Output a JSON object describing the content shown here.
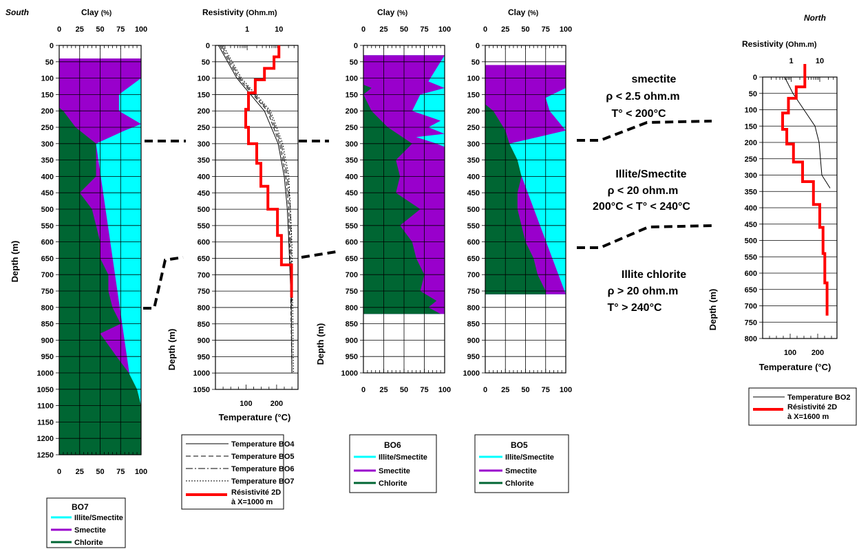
{
  "colors": {
    "illite_smectite": "#00FFFF",
    "smectite": "#9900CC",
    "chlorite": "#006633",
    "resistivity": "#FF0000"
  },
  "labels": {
    "south": "South",
    "north": "North",
    "clay_title": "Clay",
    "clay_unit": "(%)",
    "res_title": "Resistivity",
    "res_unit": "(Ohm.m)",
    "depth_label": "Depth (m)",
    "temp_label": "Temperature (°C)"
  },
  "zones": [
    {
      "lines": [
        "smectite",
        "ρ  < 2.5 ohm.m",
        "T° < 200°C"
      ]
    },
    {
      "lines": [
        "Illite/Smectite",
        "ρ  < 20 ohm.m",
        "200°C < T° < 240°C"
      ]
    },
    {
      "lines": [
        "Illite chlorite",
        "ρ  > 20 ohm.m",
        "T° > 240°C"
      ]
    }
  ],
  "legends": {
    "bo7": {
      "title": "BO7",
      "items": [
        "Illite/Smectite",
        "Smectite",
        "Chlorite"
      ]
    },
    "bo6": {
      "title": "BO6",
      "items": [
        "Illite/Smectite",
        "Smectite",
        "Chlorite"
      ]
    },
    "bo5": {
      "title": "BO5",
      "items": [
        "Illite/Smectite",
        "Smectite",
        "Chlorite"
      ]
    },
    "p2": {
      "items": [
        "Temperature BO4",
        "Temperature BO5",
        "Temperature BO6",
        "Temperature BO7",
        "Résistivité 2D",
        "à X=1000 m"
      ]
    },
    "p5": {
      "items": [
        "Temperature BO2",
        "Résistivité 2D",
        "à X=1600 m"
      ]
    }
  },
  "chart_data": [
    {
      "id": "bo7",
      "type": "area",
      "name": "BO7",
      "xlabel": "Clay (%)",
      "ylabel": "Depth (m)",
      "xlim": [
        0,
        100
      ],
      "ylim": [
        0,
        1250
      ],
      "xticks": [
        0,
        25,
        50,
        75,
        100
      ],
      "yticks": [
        0,
        50,
        100,
        150,
        200,
        250,
        300,
        350,
        400,
        450,
        500,
        550,
        600,
        650,
        700,
        750,
        800,
        850,
        900,
        950,
        1000,
        1050,
        1100,
        1150,
        1200,
        1250
      ],
      "start": 40,
      "end": 1250,
      "chlorite": [
        [
          40,
          0
        ],
        [
          190,
          0
        ],
        [
          200,
          5
        ],
        [
          250,
          20
        ],
        [
          300,
          45
        ],
        [
          400,
          45
        ],
        [
          450,
          25
        ],
        [
          500,
          40
        ],
        [
          550,
          45
        ],
        [
          600,
          50
        ],
        [
          650,
          50
        ],
        [
          700,
          60
        ],
        [
          750,
          60
        ],
        [
          800,
          65
        ],
        [
          850,
          75
        ],
        [
          880,
          50
        ],
        [
          950,
          70
        ],
        [
          1000,
          85
        ],
        [
          1050,
          95
        ],
        [
          1100,
          100
        ],
        [
          1250,
          100
        ]
      ],
      "smectite_edge": [
        [
          40,
          100
        ],
        [
          100,
          100
        ],
        [
          150,
          73
        ],
        [
          200,
          73
        ],
        [
          240,
          100
        ],
        [
          260,
          80
        ],
        [
          300,
          45
        ],
        [
          1250,
          100
        ]
      ]
    },
    {
      "id": "p2",
      "type": "line",
      "xlabel": "Temperature (°C)",
      "x2label": "Resistivity (Ohm.m)",
      "ylabel": "Depth (m)",
      "ylim": [
        0,
        1050
      ],
      "templim": [
        0,
        270
      ],
      "reslim": [
        0.1,
        40
      ],
      "temp_ticks": [
        100,
        200
      ],
      "res_ticks": [
        1,
        10
      ],
      "yticks": [
        0,
        50,
        100,
        150,
        200,
        250,
        300,
        350,
        400,
        450,
        500,
        550,
        600,
        650,
        700,
        750,
        800,
        850,
        900,
        950,
        1000,
        1050
      ],
      "resistivity_steps": [
        [
          0,
          10
        ],
        [
          35,
          10
        ],
        [
          35,
          7
        ],
        [
          70,
          7
        ],
        [
          70,
          3.5
        ],
        [
          105,
          3.5
        ],
        [
          105,
          1.8
        ],
        [
          145,
          1.8
        ],
        [
          145,
          1.1
        ],
        [
          195,
          1.1
        ],
        [
          195,
          0.9
        ],
        [
          250,
          0.9
        ],
        [
          250,
          1.1
        ],
        [
          300,
          1.1
        ],
        [
          300,
          2
        ],
        [
          360,
          2
        ],
        [
          360,
          2.7
        ],
        [
          430,
          2.7
        ],
        [
          430,
          4.5
        ],
        [
          500,
          4.5
        ],
        [
          500,
          9
        ],
        [
          580,
          9
        ],
        [
          580,
          12
        ],
        [
          670,
          12
        ],
        [
          670,
          25
        ],
        [
          770,
          25
        ]
      ],
      "temp_bo4": [
        [
          0,
          10
        ],
        [
          100,
          70
        ],
        [
          200,
          160
        ],
        [
          300,
          205
        ],
        [
          400,
          225
        ],
        [
          500,
          235
        ],
        [
          600,
          240
        ],
        [
          800,
          248
        ],
        [
          1000,
          250
        ]
      ],
      "temp_bo5": [
        [
          0,
          15
        ],
        [
          100,
          75
        ],
        [
          200,
          170
        ],
        [
          300,
          210
        ],
        [
          400,
          230
        ],
        [
          500,
          240
        ],
        [
          700,
          245
        ],
        [
          1000,
          250
        ]
      ],
      "temp_bo6": [
        [
          0,
          20
        ],
        [
          100,
          80
        ],
        [
          200,
          175
        ],
        [
          300,
          215
        ],
        [
          400,
          235
        ],
        [
          500,
          245
        ],
        [
          800,
          250
        ]
      ],
      "temp_bo7": [
        [
          0,
          25
        ],
        [
          100,
          85
        ],
        [
          200,
          180
        ],
        [
          300,
          220
        ],
        [
          400,
          240
        ],
        [
          600,
          250
        ],
        [
          1000,
          255
        ]
      ]
    },
    {
      "id": "bo6",
      "type": "area",
      "name": "BO6",
      "xlabel": "Clay (%)",
      "ylabel": "Depth (m)",
      "xlim": [
        0,
        100
      ],
      "ylim": [
        0,
        1000
      ],
      "xticks": [
        0,
        25,
        50,
        75,
        100
      ],
      "yticks": [
        0,
        50,
        100,
        150,
        200,
        250,
        300,
        350,
        400,
        450,
        500,
        550,
        600,
        650,
        700,
        750,
        800,
        850,
        900,
        950,
        1000
      ],
      "start": 30,
      "end": 820,
      "chlorite": [
        [
          30,
          0
        ],
        [
          120,
          0
        ],
        [
          130,
          10
        ],
        [
          150,
          0
        ],
        [
          200,
          10
        ],
        [
          250,
          30
        ],
        [
          300,
          60
        ],
        [
          350,
          40
        ],
        [
          400,
          45
        ],
        [
          450,
          40
        ],
        [
          500,
          70
        ],
        [
          550,
          45
        ],
        [
          600,
          60
        ],
        [
          650,
          65
        ],
        [
          700,
          75
        ],
        [
          750,
          70
        ],
        [
          780,
          90
        ],
        [
          800,
          80
        ],
        [
          820,
          95
        ]
      ],
      "smectite_edge": [
        [
          30,
          100
        ],
        [
          110,
          80
        ],
        [
          130,
          100
        ],
        [
          150,
          70
        ],
        [
          200,
          60
        ],
        [
          230,
          95
        ],
        [
          250,
          80
        ],
        [
          270,
          100
        ],
        [
          280,
          65
        ],
        [
          300,
          90
        ],
        [
          310,
          100
        ],
        [
          820,
          100
        ]
      ]
    },
    {
      "id": "bo5",
      "type": "area",
      "name": "BO5",
      "xlabel": "Clay (%)",
      "ylabel": "Depth (m)",
      "xlim": [
        0,
        100
      ],
      "ylim": [
        0,
        1000
      ],
      "xticks": [
        0,
        25,
        50,
        75,
        100
      ],
      "yticks": [
        0,
        50,
        100,
        150,
        200,
        250,
        300,
        350,
        400,
        450,
        500,
        550,
        600,
        650,
        700,
        750,
        800,
        850,
        900,
        950,
        1000
      ],
      "start": 60,
      "end": 760,
      "chlorite": [
        [
          60,
          0
        ],
        [
          180,
          0
        ],
        [
          200,
          10
        ],
        [
          260,
          25
        ],
        [
          300,
          30
        ],
        [
          350,
          40
        ],
        [
          400,
          45
        ],
        [
          450,
          40
        ],
        [
          500,
          40
        ],
        [
          600,
          50
        ],
        [
          650,
          60
        ],
        [
          700,
          65
        ],
        [
          750,
          75
        ],
        [
          760,
          75
        ]
      ],
      "smectite_edge": [
        [
          60,
          100
        ],
        [
          130,
          100
        ],
        [
          160,
          75
        ],
        [
          200,
          80
        ],
        [
          260,
          100
        ],
        [
          300,
          30
        ],
        [
          760,
          100
        ]
      ]
    },
    {
      "id": "p5",
      "type": "line",
      "xlabel": "Temperature (°C)",
      "x2label": "Resistivity (Ohm.m)",
      "ylabel": "Depth (m)",
      "ylim": [
        0,
        800
      ],
      "templim": [
        0,
        270
      ],
      "reslim": [
        0.1,
        40
      ],
      "temp_ticks": [
        100,
        200
      ],
      "res_ticks": [
        1,
        10
      ],
      "yticks": [
        0,
        50,
        100,
        150,
        200,
        250,
        300,
        350,
        400,
        450,
        500,
        550,
        600,
        650,
        700,
        750,
        800
      ],
      "resistivity_steps": [
        [
          -40,
          3
        ],
        [
          30,
          3
        ],
        [
          30,
          1.5
        ],
        [
          65,
          1.5
        ],
        [
          65,
          0.8
        ],
        [
          110,
          0.8
        ],
        [
          110,
          0.5
        ],
        [
          160,
          0.5
        ],
        [
          160,
          0.7
        ],
        [
          205,
          0.7
        ],
        [
          205,
          1.2
        ],
        [
          260,
          1.2
        ],
        [
          260,
          2.5
        ],
        [
          320,
          2.5
        ],
        [
          320,
          6
        ],
        [
          390,
          6
        ],
        [
          390,
          10
        ],
        [
          460,
          10
        ],
        [
          460,
          13
        ],
        [
          540,
          13
        ],
        [
          540,
          15
        ],
        [
          630,
          15
        ],
        [
          630,
          18
        ],
        [
          730,
          18
        ]
      ],
      "temp_bo2": [
        [
          0,
          80
        ],
        [
          50,
          110
        ],
        [
          100,
          150
        ],
        [
          150,
          190
        ],
        [
          200,
          205
        ],
        [
          300,
          215
        ],
        [
          340,
          245
        ]
      ]
    }
  ]
}
